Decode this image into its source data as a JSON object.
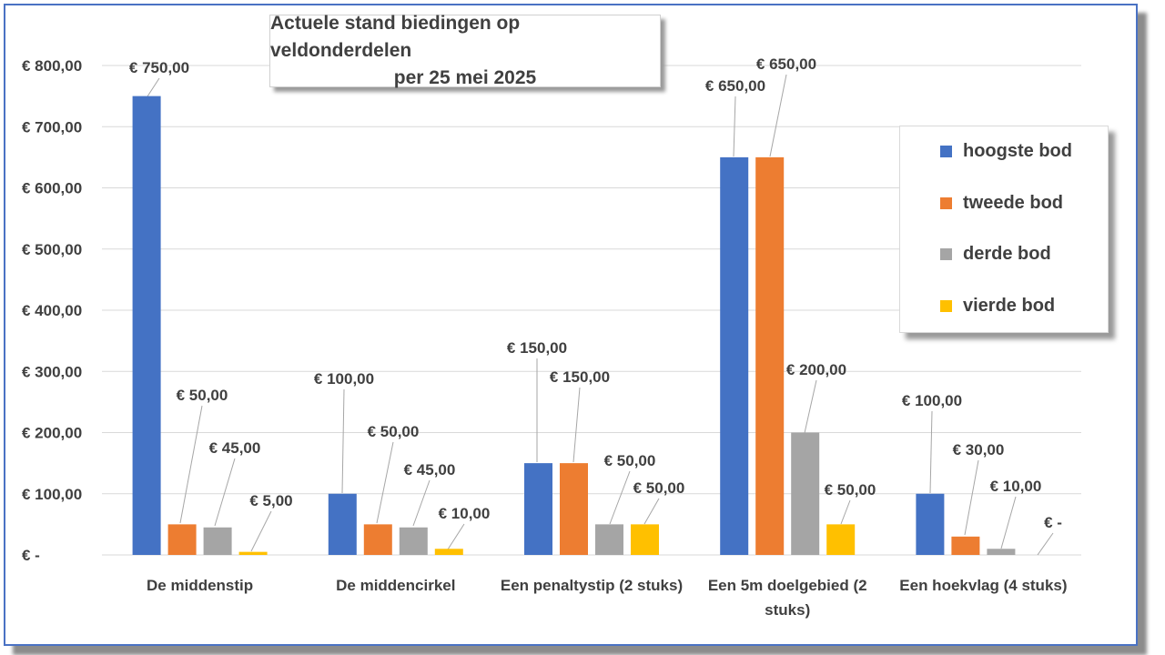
{
  "chart_data": {
    "type": "bar",
    "title_line1": "Actuele stand biedingen op veldonderdelen",
    "title_line2": "per 25 mei 2025",
    "ylim": [
      0,
      800
    ],
    "yticks": [
      0,
      100,
      200,
      300,
      400,
      500,
      600,
      700,
      800
    ],
    "ytick_labels": [
      "€ -",
      "€ 100,00",
      "€ 200,00",
      "€ 300,00",
      "€ 400,00",
      "€ 500,00",
      "€ 600,00",
      "€ 700,00",
      "€ 800,00"
    ],
    "grid": true,
    "legend_position": "right",
    "categories": [
      [
        "De middenstip"
      ],
      [
        "De middencirkel"
      ],
      [
        "Een penaltystip   (2 stuks)"
      ],
      [
        "Een 5m doelgebied   (2",
        "stuks)"
      ],
      [
        "Een hoekvlag (4 stuks)"
      ]
    ],
    "series": [
      {
        "name": "hoogste bod",
        "color": "#4472c4",
        "values": [
          750,
          100,
          150,
          650,
          100
        ],
        "labels": [
          "€ 750,00",
          "€ 100,00",
          "€ 150,00",
          "€ 650,00",
          "€ 100,00"
        ]
      },
      {
        "name": "tweede bod",
        "color": "#ed7d31",
        "values": [
          50,
          50,
          150,
          650,
          30
        ],
        "labels": [
          "€ 50,00",
          "€ 50,00",
          "€ 150,00",
          "€ 650,00",
          "€ 30,00"
        ]
      },
      {
        "name": "derde bod",
        "color": "#a5a5a5",
        "values": [
          45,
          45,
          50,
          200,
          10
        ],
        "labels": [
          "€ 45,00",
          "€ 45,00",
          "€ 50,00",
          "€ 200,00",
          "€ 10,00"
        ]
      },
      {
        "name": "vierde bod",
        "color": "#ffc000",
        "values": [
          5,
          10,
          50,
          50,
          0
        ],
        "labels": [
          "€ 5,00",
          "€ 10,00",
          "€ 50,00",
          "€ 50,00",
          "€ -"
        ]
      }
    ]
  }
}
